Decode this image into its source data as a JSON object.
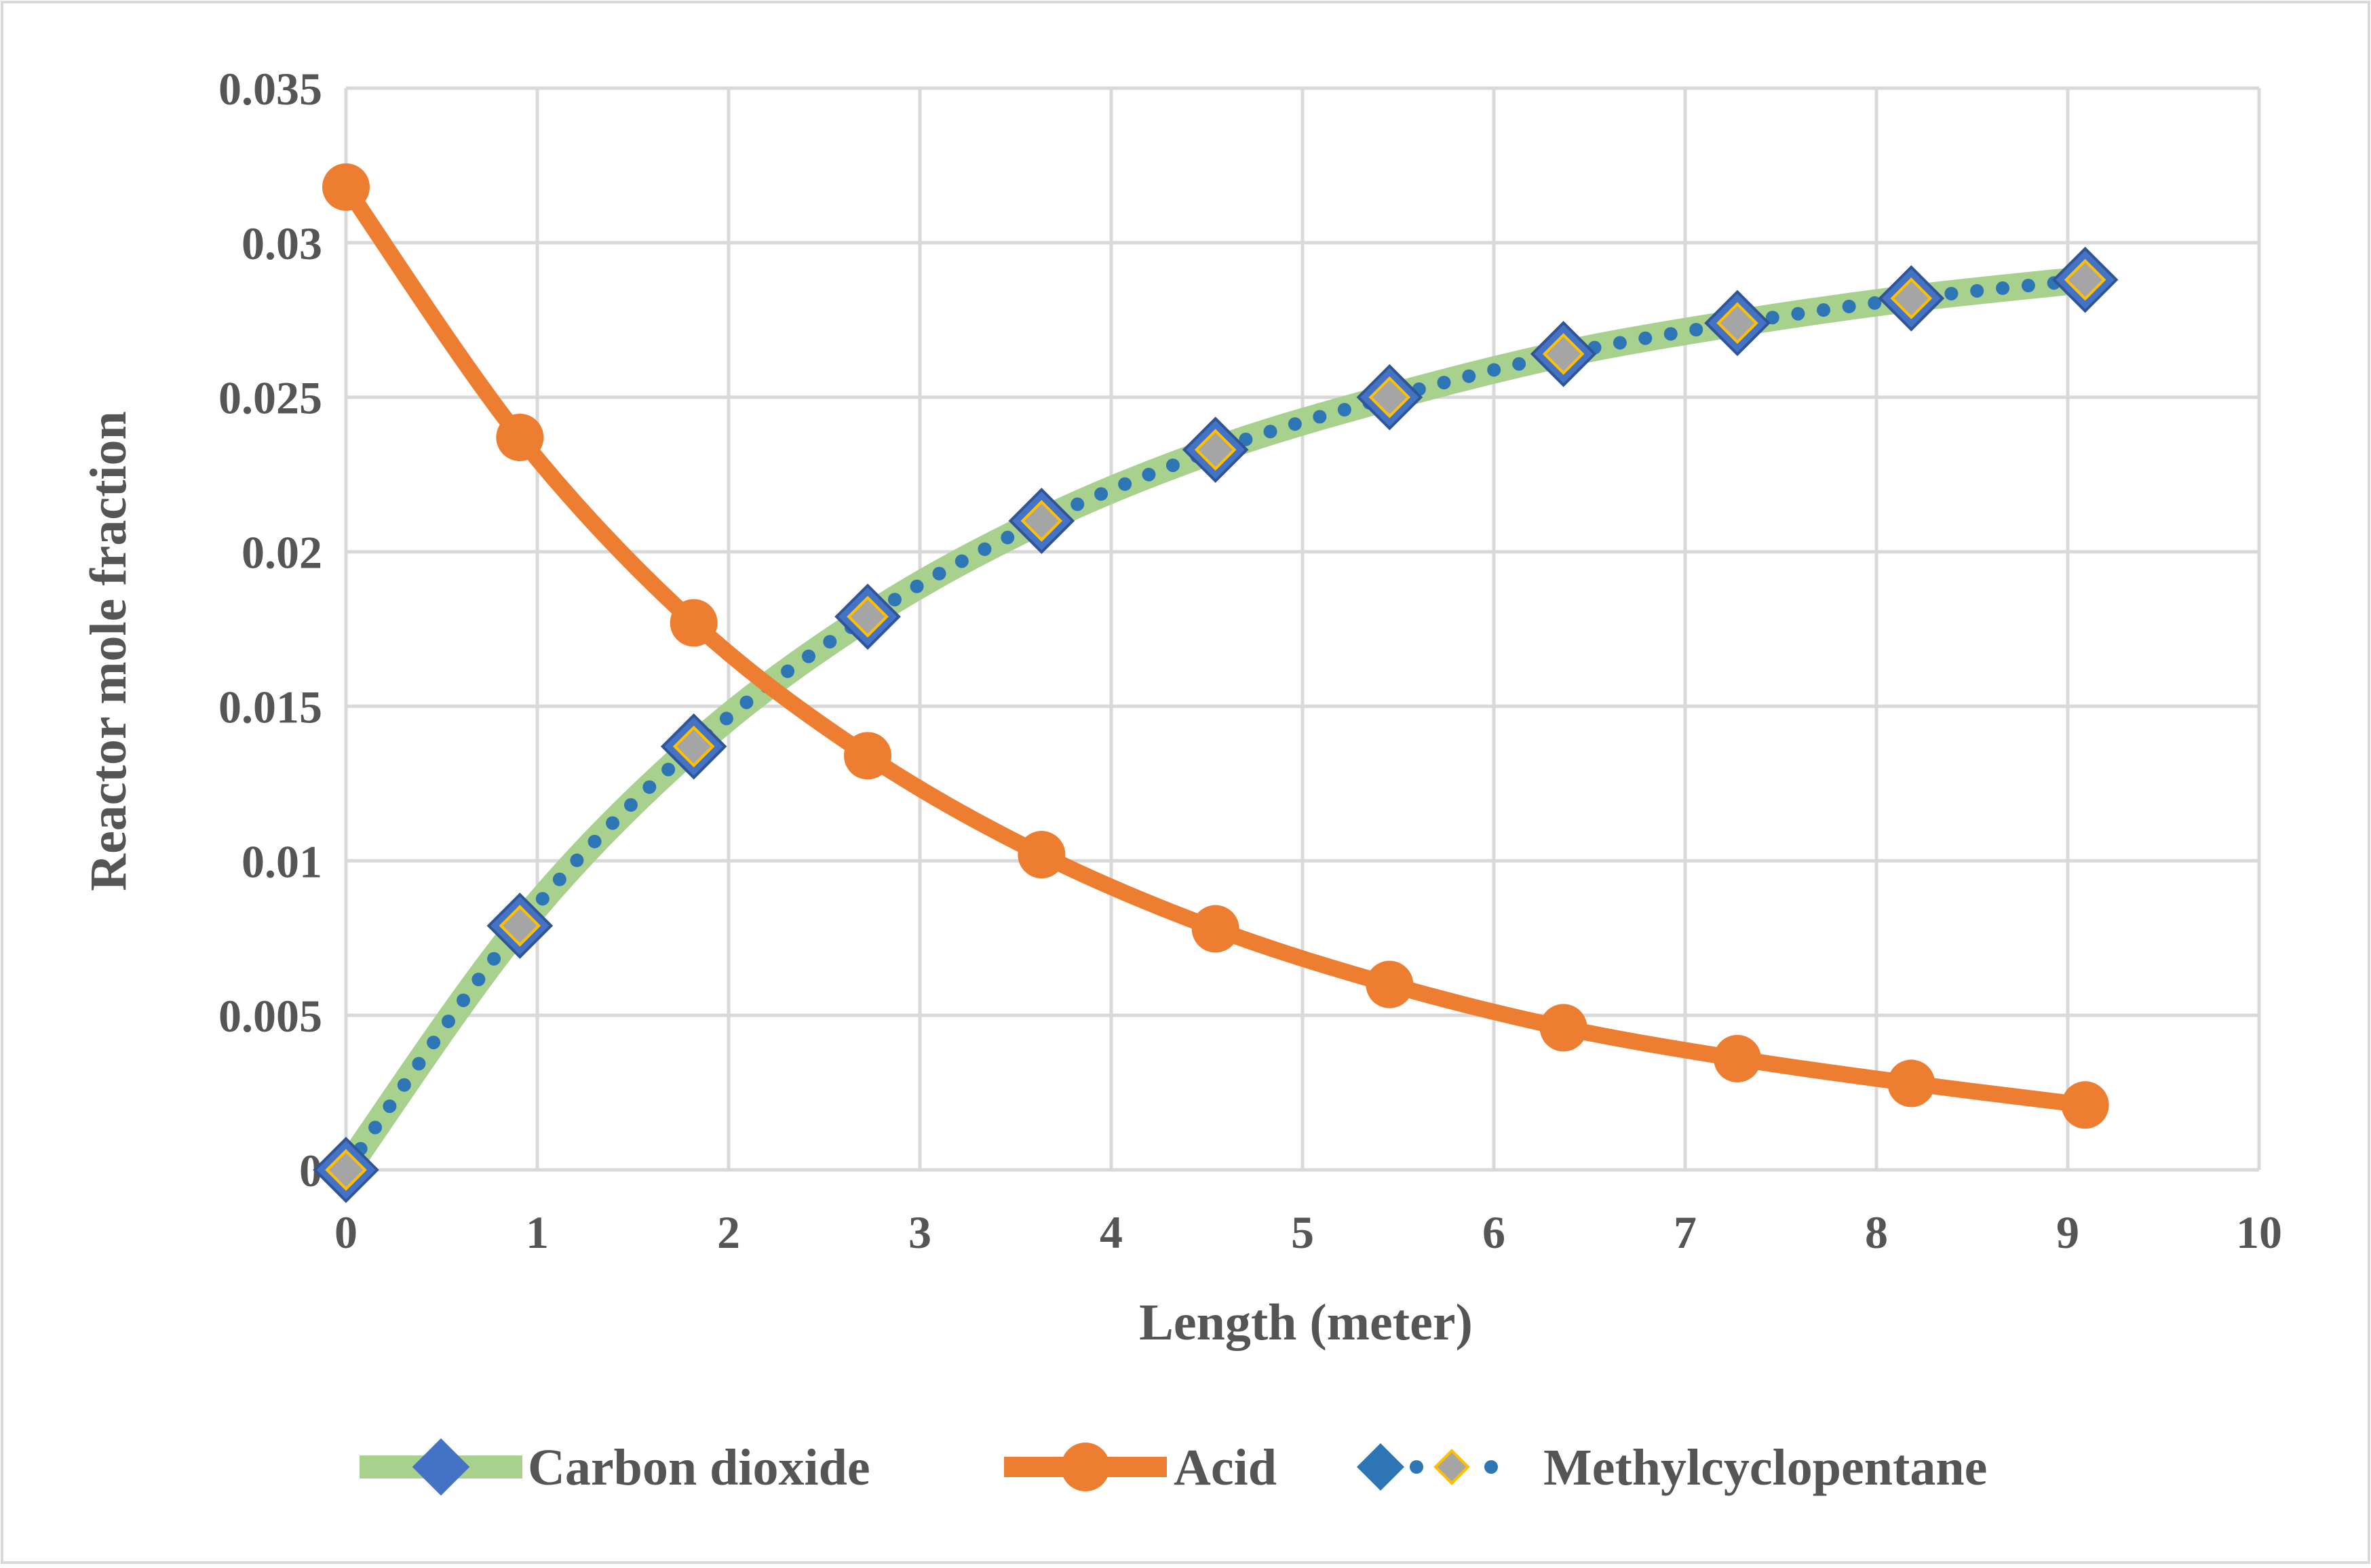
{
  "chart_data": {
    "type": "line",
    "title": "",
    "xlabel": "Length (meter)",
    "ylabel": "Reactor mole fraction",
    "xlim": [
      0,
      10
    ],
    "ylim": [
      0,
      0.035
    ],
    "x_ticks": [
      "0",
      "1",
      "2",
      "3",
      "4",
      "5",
      "6",
      "7",
      "8",
      "9",
      "10"
    ],
    "y_ticks": [
      "0",
      "0.005",
      "0.01",
      "0.015",
      "0.02",
      "0.025",
      "0.03",
      "0.035"
    ],
    "grid": true,
    "legend_position": "bottom",
    "x": [
      0,
      0.909,
      1.818,
      2.727,
      3.636,
      4.545,
      5.455,
      6.364,
      7.273,
      8.182,
      9.091
    ],
    "series": [
      {
        "name": "Carbon dioxide",
        "values": [
          0,
          0.0079,
          0.0137,
          0.0179,
          0.021,
          0.0233,
          0.025,
          0.0264,
          0.0274,
          0.0282,
          0.0288
        ]
      },
      {
        "name": "Acid",
        "values": [
          0.0318,
          0.0237,
          0.0177,
          0.0134,
          0.0102,
          0.0078,
          0.006,
          0.0046,
          0.0036,
          0.0028,
          0.0021
        ]
      },
      {
        "name": "Methylcyclopentane",
        "values": [
          0,
          0.0079,
          0.0137,
          0.0179,
          0.021,
          0.0233,
          0.025,
          0.0264,
          0.0274,
          0.0282,
          0.0288
        ]
      }
    ],
    "colors": {
      "carbon_dioxide_line": "#A9D18E",
      "carbon_dioxide_marker": "#4472C4",
      "acid": "#ED7D31",
      "methylcyclopentane_line": "#2E75B6",
      "methylcyclopentane_marker_fill": "#A5A5A5",
      "methylcyclopentane_marker_edge": "#FFC000"
    }
  }
}
